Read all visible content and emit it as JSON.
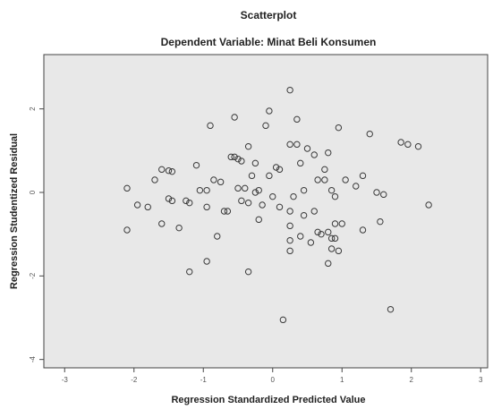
{
  "chart_data": {
    "type": "scatter",
    "title": "Scatterplot",
    "subtitle": "Dependent Variable: Minat Beli Konsumen",
    "xlabel": "Regression Standardized Predicted Value",
    "ylabel": "Regression Studentized Residual",
    "xlim": [
      -3.3,
      3.1
    ],
    "ylim": [
      -4.2,
      3.3
    ],
    "xticks": [
      -3,
      -2,
      -1,
      0,
      1,
      2,
      3
    ],
    "yticks": [
      2,
      0,
      -2,
      -4
    ],
    "grid": false,
    "legend": "none",
    "colors": {
      "plot_background": "#e8e8e8",
      "marker": "#3a3a3a"
    },
    "points": [
      [
        -2.1,
        0.1
      ],
      [
        -2.1,
        -0.9
      ],
      [
        -1.95,
        -0.3
      ],
      [
        -1.8,
        -0.35
      ],
      [
        -1.7,
        0.3
      ],
      [
        -1.6,
        0.55
      ],
      [
        -1.5,
        0.52
      ],
      [
        -1.45,
        0.5
      ],
      [
        -1.5,
        -0.15
      ],
      [
        -1.45,
        -0.2
      ],
      [
        -1.6,
        -0.75
      ],
      [
        -1.35,
        -0.85
      ],
      [
        -1.25,
        -0.2
      ],
      [
        -1.2,
        -0.25
      ],
      [
        -1.05,
        0.05
      ],
      [
        -1.1,
        0.65
      ],
      [
        -0.95,
        0.05
      ],
      [
        -0.85,
        0.3
      ],
      [
        -0.75,
        0.25
      ],
      [
        -0.95,
        -0.35
      ],
      [
        -0.8,
        -1.05
      ],
      [
        -0.7,
        -0.45
      ],
      [
        -0.65,
        -0.45
      ],
      [
        -1.2,
        -1.9
      ],
      [
        -0.95,
        -1.65
      ],
      [
        -0.9,
        1.6
      ],
      [
        -0.55,
        1.8
      ],
      [
        -0.6,
        0.85
      ],
      [
        -0.55,
        0.85
      ],
      [
        -0.5,
        0.8
      ],
      [
        -0.45,
        0.75
      ],
      [
        -0.5,
        0.1
      ],
      [
        -0.4,
        0.1
      ],
      [
        -0.45,
        -0.2
      ],
      [
        -0.35,
        -0.25
      ],
      [
        -0.35,
        1.1
      ],
      [
        -0.3,
        0.4
      ],
      [
        -0.25,
        0.7
      ],
      [
        -0.25,
        0.0
      ],
      [
        -0.2,
        0.05
      ],
      [
        -0.15,
        -0.3
      ],
      [
        -0.2,
        -0.65
      ],
      [
        -0.1,
        1.6
      ],
      [
        -0.05,
        1.95
      ],
      [
        0.05,
        0.6
      ],
      [
        0.1,
        0.55
      ],
      [
        -0.05,
        0.4
      ],
      [
        0.0,
        -0.1
      ],
      [
        0.1,
        -0.35
      ],
      [
        -0.35,
        -1.9
      ],
      [
        0.25,
        2.45
      ],
      [
        0.25,
        1.15
      ],
      [
        0.35,
        1.75
      ],
      [
        0.35,
        1.15
      ],
      [
        0.5,
        1.05
      ],
      [
        0.6,
        0.9
      ],
      [
        0.4,
        0.7
      ],
      [
        0.45,
        0.05
      ],
      [
        0.3,
        -0.1
      ],
      [
        0.25,
        -0.45
      ],
      [
        0.45,
        -0.55
      ],
      [
        0.6,
        -0.45
      ],
      [
        0.65,
        0.3
      ],
      [
        0.75,
        0.55
      ],
      [
        0.75,
        0.3
      ],
      [
        0.9,
        -0.1
      ],
      [
        0.95,
        1.55
      ],
      [
        0.8,
        0.95
      ],
      [
        0.85,
        0.05
      ],
      [
        0.25,
        -0.8
      ],
      [
        0.25,
        -1.15
      ],
      [
        0.25,
        -1.4
      ],
      [
        0.4,
        -1.05
      ],
      [
        0.55,
        -1.2
      ],
      [
        0.65,
        -0.95
      ],
      [
        0.7,
        -1.0
      ],
      [
        0.8,
        -0.95
      ],
      [
        0.85,
        -1.1
      ],
      [
        0.85,
        -1.35
      ],
      [
        0.95,
        -1.4
      ],
      [
        0.9,
        -1.1
      ],
      [
        0.8,
        -1.7
      ],
      [
        0.9,
        -0.75
      ],
      [
        1.0,
        -0.75
      ],
      [
        1.05,
        0.3
      ],
      [
        1.2,
        0.15
      ],
      [
        1.3,
        0.4
      ],
      [
        1.4,
        1.4
      ],
      [
        1.3,
        -0.9
      ],
      [
        1.5,
        0.0
      ],
      [
        1.6,
        -0.05
      ],
      [
        1.55,
        -0.7
      ],
      [
        1.85,
        1.2
      ],
      [
        1.95,
        1.15
      ],
      [
        2.1,
        1.1
      ],
      [
        2.25,
        -0.3
      ],
      [
        1.7,
        -2.8
      ],
      [
        0.15,
        -3.05
      ]
    ]
  }
}
